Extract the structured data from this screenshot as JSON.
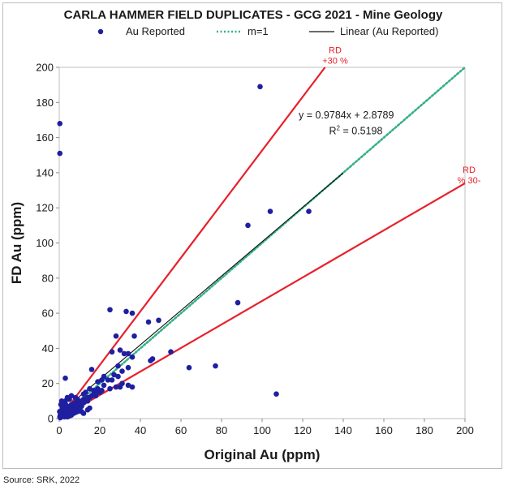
{
  "source_note": "Source: SRK, 2022",
  "chart_data": {
    "type": "scatter",
    "title": "CARLA HAMMER FIELD DUPLICATES - GCG 2021  - Mine Geology",
    "xlabel": "Original Au (ppm)",
    "ylabel": "FD Au (ppm)",
    "xlim": [
      0,
      200
    ],
    "ylim": [
      0,
      200
    ],
    "x_ticks": [
      0,
      20,
      40,
      60,
      80,
      100,
      120,
      140,
      160,
      180,
      200
    ],
    "y_ticks": [
      0,
      20,
      40,
      60,
      80,
      100,
      120,
      140,
      160,
      180,
      200
    ],
    "grid": false,
    "legend_position": "top",
    "legend": [
      {
        "label": "Au Reported",
        "kind": "marker",
        "color": "#1f1fa0"
      },
      {
        "label": "m=1",
        "kind": "dotted-line",
        "color": "#35b08a"
      },
      {
        "label": "Linear (Au Reported)",
        "kind": "line",
        "color": "#111111"
      }
    ],
    "series": [
      {
        "name": "Au Reported",
        "kind": "points",
        "color": "#1f1fa0",
        "points": [
          [
            0.3,
            168
          ],
          [
            0.3,
            151
          ],
          [
            99,
            189
          ],
          [
            104,
            118
          ],
          [
            123,
            118
          ],
          [
            93,
            110
          ],
          [
            88,
            66
          ],
          [
            107,
            14
          ],
          [
            77,
            30
          ],
          [
            64,
            29
          ],
          [
            55,
            38
          ],
          [
            49,
            56
          ],
          [
            44,
            55
          ],
          [
            36,
            60
          ],
          [
            33,
            61
          ],
          [
            25,
            62
          ],
          [
            37,
            47
          ],
          [
            28,
            47
          ],
          [
            30,
            39
          ],
          [
            32,
            37
          ],
          [
            26,
            38
          ],
          [
            34,
            37
          ],
          [
            36,
            35
          ],
          [
            46,
            34
          ],
          [
            45,
            33
          ],
          [
            29,
            30
          ],
          [
            31,
            27
          ],
          [
            34,
            29
          ],
          [
            29,
            24
          ],
          [
            27,
            25
          ],
          [
            24,
            22
          ],
          [
            26,
            22
          ],
          [
            22,
            24
          ],
          [
            21,
            22
          ],
          [
            19,
            21
          ],
          [
            16,
            28
          ],
          [
            15,
            17
          ],
          [
            17,
            16
          ],
          [
            19,
            17
          ],
          [
            22,
            19
          ],
          [
            25,
            17
          ],
          [
            28,
            18
          ],
          [
            30,
            18
          ],
          [
            31,
            20
          ],
          [
            34,
            19
          ],
          [
            36,
            18
          ],
          [
            3,
            23
          ],
          [
            12,
            14
          ],
          [
            13,
            15
          ],
          [
            14,
            12
          ],
          [
            12,
            11
          ],
          [
            11,
            9
          ],
          [
            10,
            10
          ],
          [
            9,
            11
          ],
          [
            8,
            12
          ],
          [
            8,
            9
          ],
          [
            7,
            7
          ],
          [
            6,
            8
          ],
          [
            5,
            6
          ],
          [
            4,
            7
          ],
          [
            3,
            5
          ],
          [
            2,
            4
          ],
          [
            1.5,
            6
          ],
          [
            1,
            3
          ],
          [
            0.5,
            2
          ],
          [
            0.3,
            1
          ],
          [
            0.5,
            0.5
          ],
          [
            1,
            1
          ],
          [
            1.5,
            1.5
          ],
          [
            2,
            2
          ],
          [
            2.5,
            1
          ],
          [
            3,
            2
          ],
          [
            3.5,
            3
          ],
          [
            4,
            2
          ],
          [
            4.5,
            4
          ],
          [
            5,
            3
          ],
          [
            5.5,
            5
          ],
          [
            6,
            4
          ],
          [
            6.5,
            6
          ],
          [
            7,
            5
          ],
          [
            8,
            6
          ],
          [
            9,
            7
          ],
          [
            10,
            8
          ],
          [
            11,
            7
          ],
          [
            12,
            9
          ],
          [
            13,
            11
          ],
          [
            14,
            10
          ],
          [
            15,
            12
          ],
          [
            16,
            13
          ],
          [
            17,
            14
          ],
          [
            18,
            13
          ],
          [
            19,
            15
          ],
          [
            20,
            15
          ],
          [
            21,
            16
          ],
          [
            4,
            1
          ],
          [
            5,
            1.5
          ],
          [
            6,
            2
          ],
          [
            7,
            3
          ],
          [
            8,
            3.5
          ],
          [
            9,
            4
          ],
          [
            10,
            5
          ],
          [
            11,
            4
          ],
          [
            12,
            3
          ],
          [
            14,
            5
          ],
          [
            15,
            6
          ],
          [
            2,
            9
          ],
          [
            3,
            10
          ],
          [
            4,
            12
          ],
          [
            5,
            11
          ],
          [
            6,
            13
          ],
          [
            0.2,
            4
          ],
          [
            0.8,
            8
          ],
          [
            1.2,
            10
          ],
          [
            2.2,
            7
          ],
          [
            3.2,
            8
          ]
        ]
      },
      {
        "name": "m=1",
        "kind": "line",
        "style": "dotted",
        "color": "#35b08a",
        "points": [
          [
            0,
            0
          ],
          [
            200,
            200
          ]
        ]
      },
      {
        "name": "Linear (Au Reported)",
        "kind": "line",
        "style": "solid",
        "color": "#111111",
        "points": [
          [
            0,
            2.8789
          ],
          [
            140,
            139.8549
          ]
        ]
      },
      {
        "kind": "line",
        "style": "solid",
        "color": "#e8202a",
        "points": [
          [
            0,
            0
          ],
          [
            131,
            200
          ]
        ]
      },
      {
        "kind": "line",
        "style": "solid",
        "color": "#e8202a",
        "points": [
          [
            0,
            0
          ],
          [
            200,
            134
          ]
        ]
      }
    ],
    "annotations": [
      {
        "text": "y = 0.9784x + 2.8789",
        "x": 118,
        "y": 171,
        "color": "#1a1a1a"
      },
      {
        "text": "R",
        "sup": "2",
        "after": " = 0.5198",
        "x": 133,
        "y": 162,
        "color": "#1a1a1a"
      },
      {
        "text": "RD",
        "x": 136,
        "y": 208,
        "color": "#e8202a"
      },
      {
        "text": "+30 %",
        "x": 136,
        "y": 202,
        "color": "#e8202a"
      },
      {
        "text": "RD",
        "x": 202,
        "y": 140,
        "color": "#e8202a"
      },
      {
        "text": "% 30-",
        "x": 202,
        "y": 134,
        "color": "#e8202a"
      }
    ]
  }
}
